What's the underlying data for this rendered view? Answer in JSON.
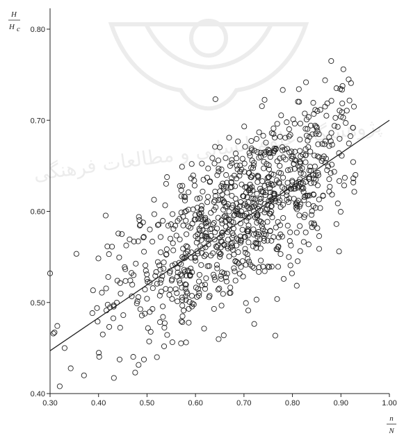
{
  "chart_data": {
    "type": "scatter",
    "title": "",
    "ylabel": {
      "numerator": "H",
      "denominator": "H",
      "denominator_subscript": "c"
    },
    "xlabel": {
      "numerator": "n",
      "denominator": "N"
    },
    "xlim": [
      0.3,
      1.0
    ],
    "ylim": [
      0.4,
      0.8
    ],
    "x_ticks": [
      "0.30",
      "0.40",
      "0.50",
      "0.60",
      "0.70",
      "0.80",
      "0.90",
      "1.00"
    ],
    "y_ticks": [
      "0.40",
      "0.50",
      "0.60",
      "0.70",
      "0.80"
    ],
    "grid": false,
    "legend": "none",
    "point_count_approx": 950,
    "fit_line": {
      "x": [
        0.3,
        1.0
      ],
      "y": [
        0.447,
        0.7
      ]
    },
    "cluster_model": {
      "x_mean": 0.7,
      "x_sd": 0.135,
      "slope": 0.36,
      "intercept": 0.345,
      "y_sd": 0.045
    },
    "notable_points": [
      {
        "x": 0.32,
        "y": 0.408
      },
      {
        "x": 0.3,
        "y": 0.532
      },
      {
        "x": 0.88,
        "y": 0.765
      },
      {
        "x": 0.905,
        "y": 0.756
      },
      {
        "x": 0.87,
        "y": 0.705
      },
      {
        "x": 0.93,
        "y": 0.64
      },
      {
        "x": 0.33,
        "y": 0.45
      },
      {
        "x": 0.37,
        "y": 0.42
      }
    ],
    "colors": {
      "marker": "#222222",
      "line": "#222222",
      "axis": "#222222",
      "watermark": "#777777"
    },
    "watermark_text": "پژوهشگاه علوم انسانی و مطالعات فرهنگی"
  }
}
